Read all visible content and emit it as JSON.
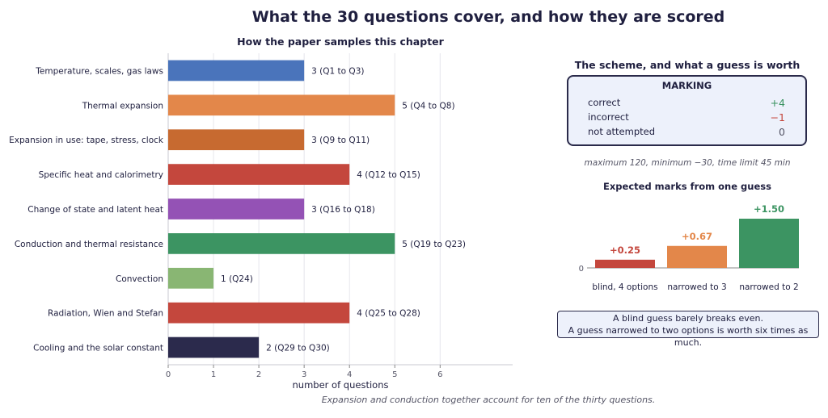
{
  "title": "What the 30 questions cover, and how they are scored",
  "footer": "Expansion and conduction together account for ten of the thirty questions.",
  "chart_data": [
    {
      "type": "bar",
      "orientation": "horizontal",
      "title": "How the paper samples this chapter",
      "xlabel": "number of questions",
      "ylabel": "",
      "xlim": [
        0,
        7.6
      ],
      "xticks": [
        0,
        1,
        2,
        3,
        4,
        5,
        6
      ],
      "grid": true,
      "categories": [
        "Temperature, scales, gas laws",
        "Thermal expansion",
        "Expansion in use: tape, stress, clock",
        "Specific heat and calorimetry",
        "Change of state and latent heat",
        "Conduction and thermal resistance",
        "Convection",
        "Radiation, Wien and Stefan",
        "Cooling and the solar constant"
      ],
      "values": [
        3,
        5,
        3,
        4,
        3,
        5,
        1,
        4,
        2
      ],
      "ranges": [
        "(Q1 to Q3)",
        "(Q4 to Q8)",
        "(Q9 to Q11)",
        "(Q12 to Q15)",
        "(Q16 to Q18)",
        "(Q19 to Q23)",
        "(Q24)",
        "(Q25 to Q28)",
        "(Q29 to Q30)"
      ],
      "colors": [
        "#4a74bb",
        "#e3874a",
        "#c76a30",
        "#c4473d",
        "#9452b5",
        "#3c9462",
        "#89b673",
        "#c4473d",
        "#2b2a4c"
      ]
    },
    {
      "type": "bar",
      "title": "Expected marks from one guess",
      "categories": [
        "blind, 4 options",
        "narrowed to 3",
        "narrowed to 2"
      ],
      "values": [
        0.25,
        0.67,
        1.5
      ],
      "value_labels": [
        "+0.25",
        "+0.67",
        "+1.50"
      ],
      "colors": [
        "#c4473d",
        "#e3874a",
        "#3c9462"
      ],
      "yticks": [
        0
      ],
      "ylim": [
        -0.05,
        1.5
      ]
    }
  ],
  "scheme": {
    "title": "The scheme, and what a guess is worth",
    "heading": "MARKING",
    "rows": [
      {
        "label": "correct",
        "value": "+4",
        "color": "#3c9462"
      },
      {
        "label": "incorrect",
        "value": "−1",
        "color": "#c4473d"
      },
      {
        "label": "not attempted",
        "value": "0",
        "color": "#555566"
      }
    ],
    "limits": "maximum 120,   minimum −30,   time limit 45 min"
  },
  "note": {
    "line1": "A blind guess barely breaks even.",
    "line2": "A guess narrowed to two options is worth six times as much."
  }
}
